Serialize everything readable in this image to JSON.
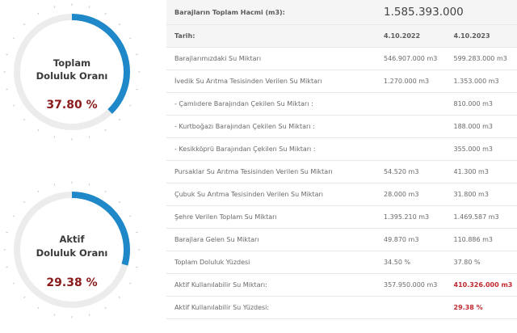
{
  "gauges": [
    {
      "title_line1": "Toplam",
      "title_line2": "Doluluk Oranı",
      "value": "37.80 %",
      "fraction": 0.378,
      "color": "#1e88c8"
    },
    {
      "title_line1": "Aktif",
      "title_line2": "Doluluk Oranı",
      "value": "29.38 %",
      "fraction": 0.2938,
      "color": "#1e88c8"
    }
  ],
  "table": {
    "volume_label": "Barajların Toplam Hacmi (m3):",
    "volume_value": "1.585.393.000",
    "date_label": "Tarih:",
    "date_1": "4.10.2022",
    "date_2": "4.10.2023",
    "rows": [
      {
        "label": "Barajlarımızdaki Su Miktarı",
        "v1": "546.907.000 m3",
        "v2": "599.283.000 m3"
      },
      {
        "label": "İvedik Su Arıtma Tesisinden Verilen Su Miktarı",
        "v1": "1.270.000 m3",
        "v2": "1.353.000 m3"
      },
      {
        "label": "- Çamlıdere Barajından Çekilen Su Miktarı :",
        "v1": "",
        "v2": "810.000 m3"
      },
      {
        "label": "- Kurtboğazı Barajından Çekilen Su Miktarı :",
        "v1": "",
        "v2": "188.000 m3"
      },
      {
        "label": "- Kesikköprü Barajından Çekilen Su Miktarı :",
        "v1": "",
        "v2": "355.000 m3"
      },
      {
        "label": "Pursaklar Su Arıtma Tesisinden Verilen Su Miktarı",
        "v1": "54.520 m3",
        "v2": "41.300 m3"
      },
      {
        "label": "Çubuk Su Arıtma Tesisinden Verilen Su Miktarı",
        "v1": "28.000 m3",
        "v2": "31.800 m3"
      },
      {
        "label": "Şehre Verilen Toplam Su Miktarı",
        "v1": "1.395.210 m3",
        "v2": "1.469.587 m3"
      },
      {
        "label": "Barajlara Gelen Su Miktarı",
        "v1": "49.870 m3",
        "v2": "110.886 m3"
      },
      {
        "label": "Toplam Doluluk Yüzdesi",
        "v1": "34.50 %",
        "v2": "37.80 %"
      },
      {
        "label": "Aktif Kullanılabilir Su Miktarı:",
        "v1": "357.950.000 m3",
        "v2": "410.326.000 m3"
      },
      {
        "label": "Aktif Kullanılabilir Su Yüzdesi:",
        "v1": "",
        "v2": "29.38 %"
      }
    ]
  }
}
